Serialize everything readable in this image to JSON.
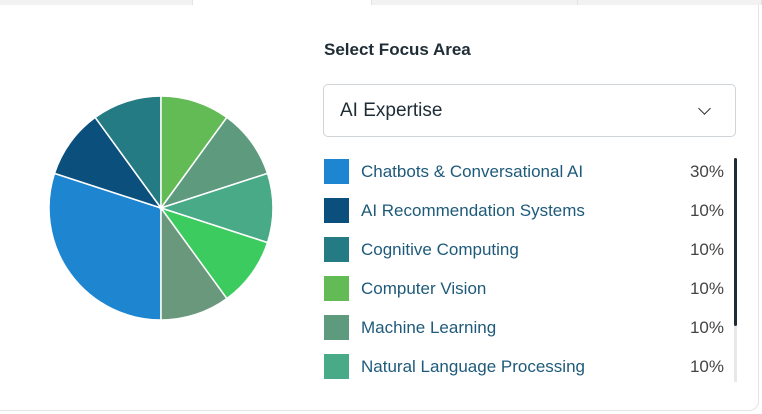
{
  "tabs": [
    {
      "label": ""
    },
    {
      "label": "",
      "active": true
    },
    {
      "label": ""
    },
    {
      "label": ""
    }
  ],
  "title": "Select Focus Area",
  "select": {
    "value": "AI Expertise",
    "icon": "chevron-down-icon"
  },
  "legend": [
    {
      "label": "Chatbots & Conversational AI",
      "pct": "30%",
      "color": "#1e86d0"
    },
    {
      "label": "AI Recommendation Systems",
      "pct": "10%",
      "color": "#0b4f7d"
    },
    {
      "label": "Cognitive Computing",
      "pct": "10%",
      "color": "#247b84"
    },
    {
      "label": "Computer Vision",
      "pct": "10%",
      "color": "#62bb55"
    },
    {
      "label": "Machine Learning",
      "pct": "10%",
      "color": "#5e9a7d"
    },
    {
      "label": "Natural Language Processing",
      "pct": "10%",
      "color": "#49aa88"
    }
  ],
  "chart_data": {
    "type": "pie",
    "slices": [
      {
        "label": "Chatbots & Conversational AI",
        "value": 30,
        "color": "#1e86d0"
      },
      {
        "label": "AI Recommendation Systems",
        "value": 10,
        "color": "#0b4f7d"
      },
      {
        "label": "Cognitive Computing",
        "value": 10,
        "color": "#247b84"
      },
      {
        "label": "Computer Vision",
        "value": 10,
        "color": "#62bb55"
      },
      {
        "label": "Machine Learning",
        "value": 10,
        "color": "#5e9a7d"
      },
      {
        "label": "Natural Language Processing",
        "value": 10,
        "color": "#49aa88"
      },
      {
        "value": 10,
        "color": "#3ccb5f"
      },
      {
        "value": 10,
        "color": "#6a987c"
      }
    ],
    "legend": "right"
  }
}
